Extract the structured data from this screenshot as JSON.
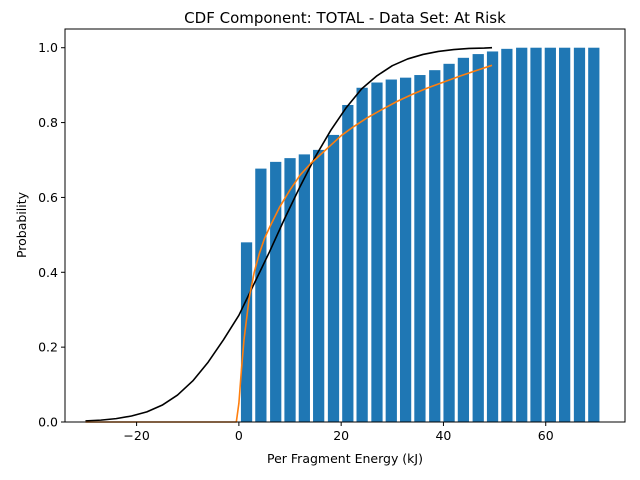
{
  "chart_data": {
    "type": "bar",
    "title": "CDF Component: TOTAL - Data Set: At Risk",
    "xlabel": "Per Fragment Energy (kJ)",
    "ylabel": "Probability",
    "xlim": [
      -34,
      75.5
    ],
    "ylim": [
      0,
      1.05
    ],
    "xticks": [
      -20,
      0,
      20,
      40,
      60
    ],
    "yticks": [
      0.0,
      0.2,
      0.4,
      0.6,
      0.8,
      1.0
    ],
    "xtick_labels": [
      "−20",
      "0",
      "20",
      "40",
      "60"
    ],
    "ytick_labels": [
      "0.0",
      "0.2",
      "0.4",
      "0.6",
      "0.8",
      "1.0"
    ],
    "grid": false,
    "bar_color": "#1f77b4",
    "bar_width": 2.2,
    "bars": {
      "x": [
        1.5,
        4.3,
        7.2,
        10.0,
        12.8,
        15.6,
        18.5,
        21.3,
        24.1,
        27.0,
        29.8,
        32.6,
        35.4,
        38.3,
        41.1,
        43.9,
        46.8,
        49.6,
        52.4,
        55.3,
        58.1,
        60.9,
        63.7,
        66.6,
        69.4
      ],
      "values": [
        0.48,
        0.677,
        0.695,
        0.705,
        0.715,
        0.727,
        0.767,
        0.847,
        0.893,
        0.907,
        0.915,
        0.92,
        0.927,
        0.94,
        0.957,
        0.973,
        0.983,
        0.99,
        0.997,
        1.0,
        1.0,
        1.0,
        1.0,
        1.0,
        1.0
      ]
    },
    "lines": [
      {
        "color": "#000000",
        "x": [
          -30,
          -27,
          -24,
          -21,
          -18,
          -15,
          -12,
          -9,
          -6,
          -3,
          0,
          3,
          6,
          9,
          12,
          15,
          18,
          21,
          24,
          27,
          30,
          33,
          36,
          39,
          42,
          45,
          48,
          49.5
        ],
        "values": [
          0.003,
          0.005,
          0.009,
          0.016,
          0.027,
          0.045,
          0.072,
          0.11,
          0.16,
          0.22,
          0.285,
          0.37,
          0.455,
          0.545,
          0.63,
          0.71,
          0.78,
          0.84,
          0.89,
          0.925,
          0.952,
          0.97,
          0.982,
          0.99,
          0.995,
          0.998,
          0.999,
          1.0
        ]
      },
      {
        "color": "#ff7f0e",
        "x": [
          -30,
          -0.5,
          0,
          0.5,
          1,
          2,
          3,
          4,
          5,
          6,
          8,
          10,
          12,
          14,
          16,
          18,
          20,
          22,
          25,
          28,
          31,
          34,
          37,
          40,
          43,
          46,
          49.5
        ],
        "values": [
          0.0,
          0.0,
          0.05,
          0.14,
          0.22,
          0.33,
          0.4,
          0.45,
          0.49,
          0.52,
          0.575,
          0.62,
          0.66,
          0.69,
          0.715,
          0.74,
          0.765,
          0.785,
          0.812,
          0.835,
          0.857,
          0.876,
          0.893,
          0.908,
          0.923,
          0.937,
          0.953
        ]
      }
    ]
  }
}
